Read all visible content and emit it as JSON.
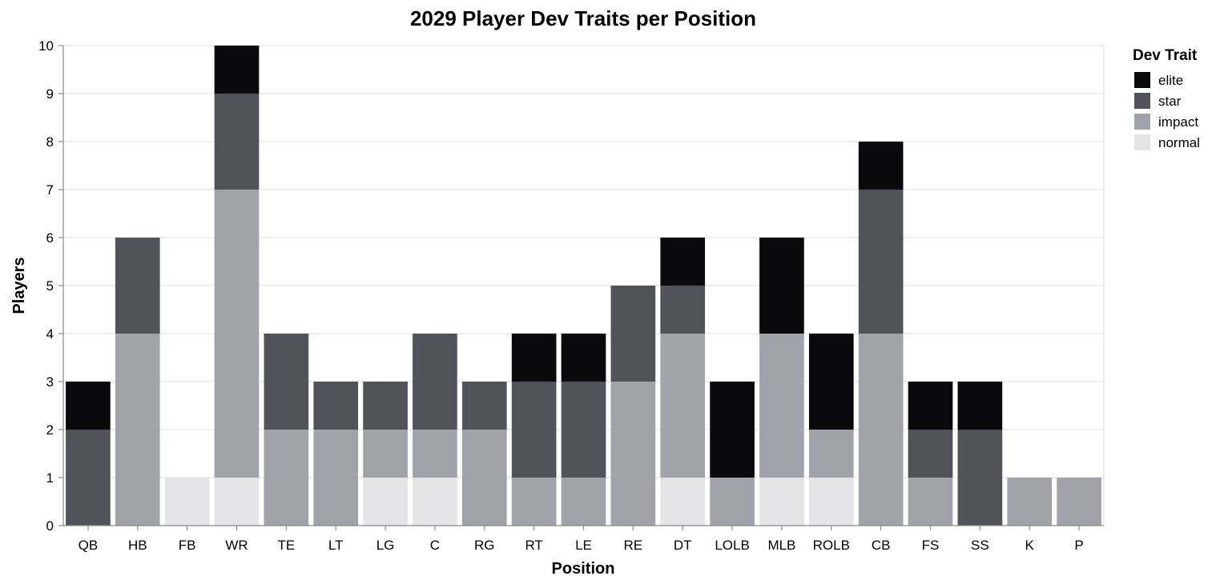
{
  "chart_data": {
    "type": "bar",
    "stacked": true,
    "title": "2029 Player Dev Traits per Position",
    "xlabel": "Position",
    "ylabel": "Players",
    "ylim": [
      0,
      10
    ],
    "yticks": [
      0,
      1,
      2,
      3,
      4,
      5,
      6,
      7,
      8,
      9,
      10
    ],
    "grid": true,
    "legend": {
      "title": "Dev Trait",
      "placement": "right"
    },
    "categories": [
      "QB",
      "HB",
      "FB",
      "WR",
      "TE",
      "LT",
      "LG",
      "C",
      "RG",
      "RT",
      "LE",
      "RE",
      "DT",
      "LOLB",
      "MLB",
      "ROLB",
      "CB",
      "FS",
      "SS",
      "K",
      "P"
    ],
    "series": [
      {
        "name": "normal",
        "color": "#e4e4e7",
        "values": [
          0,
          0,
          1,
          1,
          0,
          0,
          1,
          1,
          0,
          0,
          0,
          0,
          1,
          0,
          1,
          1,
          0,
          0,
          0,
          0,
          0
        ]
      },
      {
        "name": "impact",
        "color": "#a2a2aa",
        "values": [
          0,
          4,
          0,
          6,
          2,
          2,
          1,
          1,
          2,
          1,
          1,
          3,
          3,
          1,
          3,
          1,
          4,
          1,
          0,
          1,
          1
        ]
      },
      {
        "name": "star",
        "color": "#52525b",
        "values": [
          2,
          2,
          0,
          2,
          2,
          1,
          1,
          2,
          1,
          2,
          2,
          2,
          1,
          0,
          0,
          0,
          3,
          1,
          2,
          0,
          0
        ]
      },
      {
        "name": "elite",
        "color": "#0a0a0c",
        "values": [
          1,
          0,
          0,
          1,
          0,
          0,
          0,
          0,
          0,
          1,
          1,
          0,
          1,
          2,
          2,
          2,
          1,
          1,
          1,
          0,
          0
        ]
      }
    ],
    "legend_order": [
      "elite",
      "star",
      "impact",
      "normal"
    ]
  }
}
